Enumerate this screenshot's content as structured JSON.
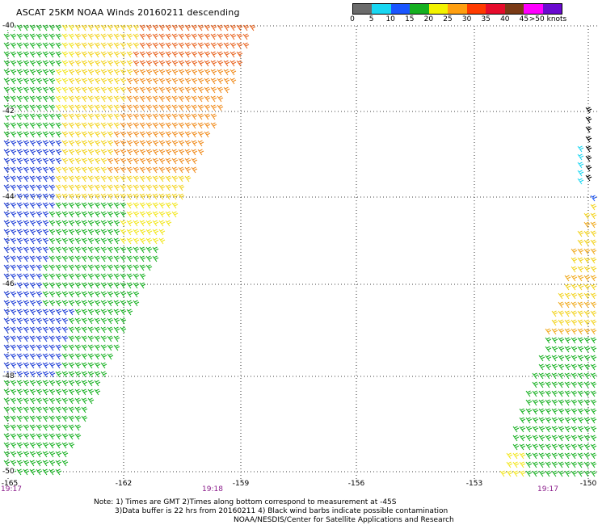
{
  "title": "ASCAT 25KM NOAA Winds 20160211 descending",
  "legend": {
    "colors": [
      "#6b6b6b",
      "#19d7f2",
      "#1a55ff",
      "#15b020",
      "#f2f200",
      "#ff9f10",
      "#ff3b00",
      "#e60c2c",
      "#7a3a16",
      "#ff00ff",
      "#6a0ad0"
    ],
    "labels": [
      "0",
      "5",
      "10",
      "15",
      "20",
      "25",
      "30",
      "35",
      "40",
      "45",
      ">50 knots"
    ]
  },
  "axes": {
    "lat_labels": [
      "-40",
      "-42",
      "-44",
      "-46",
      "-48",
      "-50"
    ],
    "lon_labels": [
      "-165",
      "-162",
      "-159",
      "-156",
      "-153",
      "-150"
    ],
    "time_labels": [
      "19:17",
      "19:18",
      "19:17"
    ]
  },
  "notes": {
    "line1": "Note: 1) Times are GMT 2)Times along bottom correspond to measurement at -45S",
    "line2": "3)Data buffer is 22 hrs from 20160211 4) Black wind barbs indicate possible contamination",
    "line3": "NOAA/NESDIS/Center for Satellite Applications and Research"
  }
}
